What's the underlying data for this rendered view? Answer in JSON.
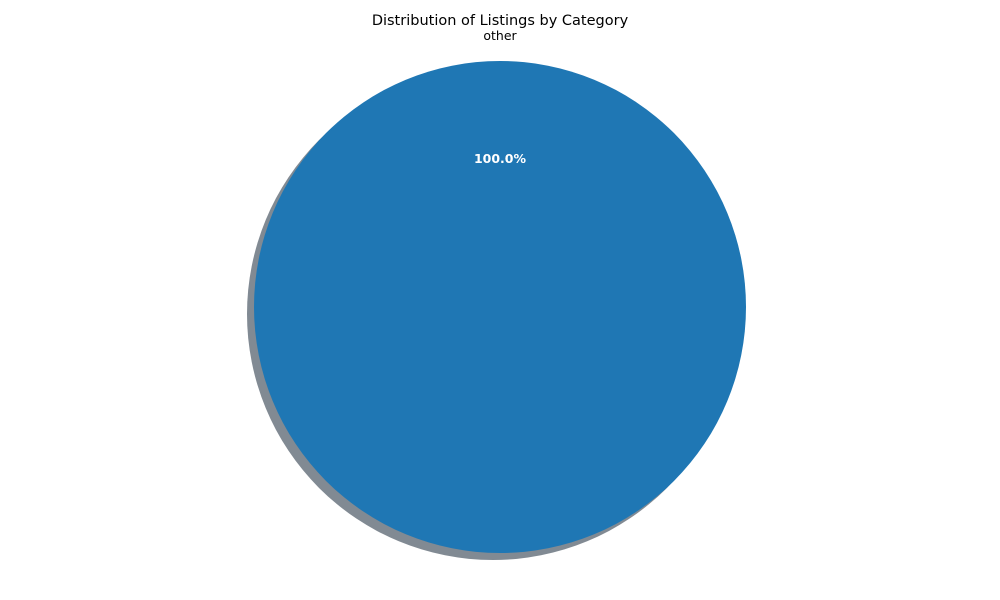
{
  "chart_data": {
    "type": "pie",
    "title": "Distribution of Listings by Category",
    "slices": [
      {
        "label": "other",
        "value": 100.0,
        "percent_label": "100.0%",
        "color": "#1f77b4"
      }
    ],
    "shadow": true,
    "shadow_color": "#6b7580",
    "percent_label_color": "#ffffff",
    "category_label_color": "#000000"
  }
}
